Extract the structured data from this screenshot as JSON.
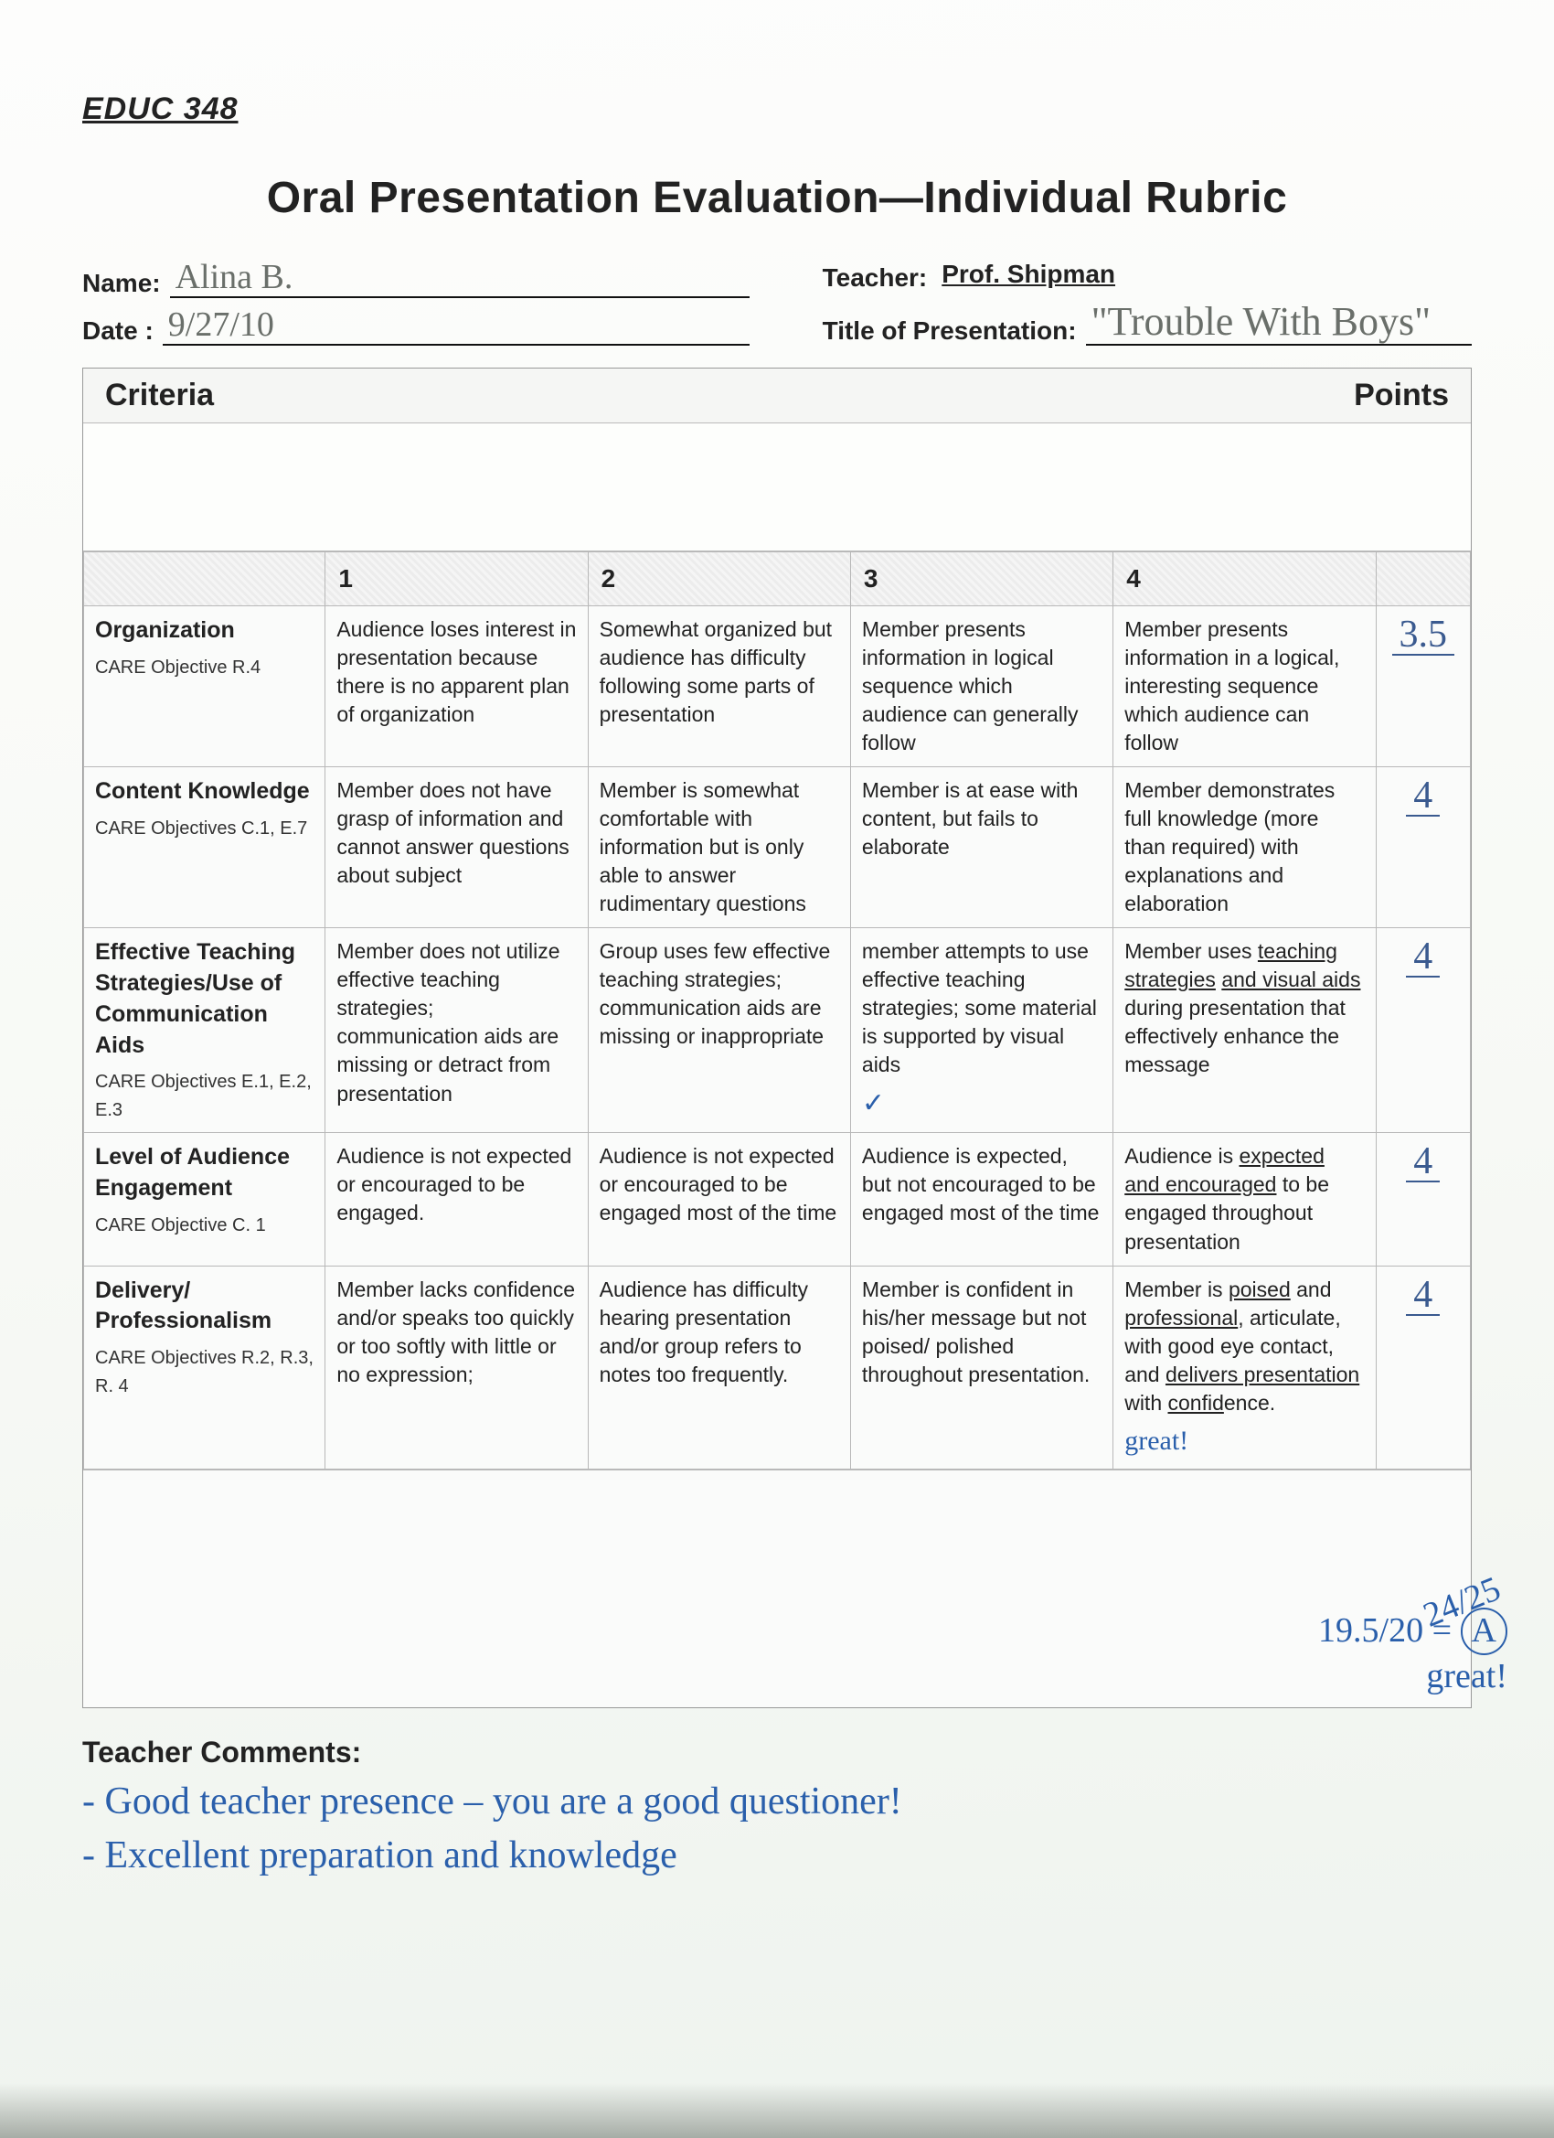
{
  "course_code": "EDUC 348",
  "title": "Oral Presentation Evaluation—Individual Rubric",
  "meta": {
    "name_label": "Name:",
    "name_value": "Alina B.",
    "date_label": "Date :",
    "date_value": "9/27/10",
    "teacher_label": "Teacher:",
    "teacher_value": "Prof. Shipman",
    "title_label": "Title of Presentation:",
    "title_value": "\"Trouble With Boys\""
  },
  "headers": {
    "criteria": "Criteria",
    "points": "Points",
    "levels": [
      "1",
      "2",
      "3",
      "4"
    ]
  },
  "rows": [
    {
      "criterion": "Organization",
      "subnote": "CARE Objective R.4",
      "cells": [
        "Audience loses interest in presentation because there is no apparent plan of organization",
        "Somewhat organized but audience has difficulty following some parts of presentation",
        "Member presents information in logical sequence which audience can generally follow",
        "Member presents information in a logical, interesting sequence which audience can follow"
      ],
      "score": "3.5"
    },
    {
      "criterion": "Content Knowledge",
      "subnote": "CARE Objectives C.1, E.7",
      "cells": [
        "Member does not have grasp of information and cannot answer questions about subject",
        "Member is somewhat comfortable with information but is only able to answer rudimentary questions",
        "Member is at ease with content, but fails to elaborate",
        "Member demonstrates full knowledge (more than required) with explanations and elaboration"
      ],
      "score": "4"
    },
    {
      "criterion": "Effective Teaching Strategies/Use of Communication Aids",
      "subnote": "CARE Objectives E.1, E.2, E.3",
      "cells": [
        "Member does not utilize effective teaching strategies; communication aids are missing or detract from presentation",
        "Group uses few effective teaching strategies; communication aids are missing or inappropriate",
        "member attempts to use effective teaching strategies; some material is supported by visual aids",
        "Member uses teaching strategies and visual aids during presentation that effectively enhance the message"
      ],
      "cell3_annot": "✓",
      "score": "4"
    },
    {
      "criterion": "Level of Audience Engagement",
      "subnote": "CARE Objective C. 1",
      "cells": [
        "Audience is not expected or encouraged to be engaged.",
        "Audience is not expected or encouraged to be engaged most of the time",
        "Audience is expected, but not encouraged to be engaged most of the time",
        "Audience is expected and encouraged to be engaged throughout presentation"
      ],
      "score": "4"
    },
    {
      "criterion": "Delivery/ Professionalism",
      "subnote": "CARE Objectives R.2, R.3, R. 4",
      "cells": [
        "Member lacks confidence and/or speaks too quickly or too softly with little or no expression;",
        "Audience has difficulty hearing presentation and/or group refers to notes too frequently.",
        "Member is confident in his/her message but not poised/ polished throughout presentation.",
        "Member is poised and professional, articulate, with good eye contact, and delivers presentation with confidence."
      ],
      "cell4_annot": "great!",
      "score": "4"
    }
  ],
  "margin": {
    "tilt": "24/25",
    "frac": "19.5/20 =",
    "grade": "A",
    "excl": "great!"
  },
  "comments": {
    "label": "Teacher Comments:",
    "line1": "- Good teacher presence – you are a good questioner!",
    "line2": "- Excellent preparation and knowledge"
  },
  "colors": {
    "ink": "#222222",
    "pen_blue": "#2a5fab",
    "pencil": "#6a6f6a",
    "border": "#b8b8b8",
    "bg": "#f7f9f5"
  }
}
